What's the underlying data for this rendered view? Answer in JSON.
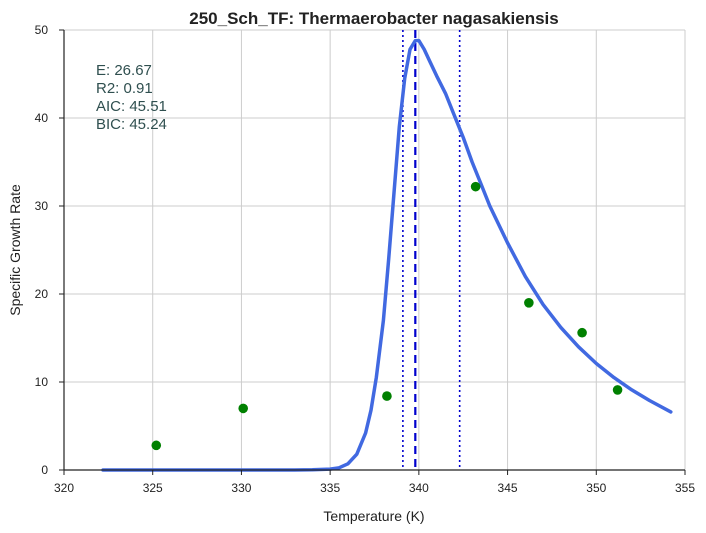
{
  "chart_data": {
    "type": "line",
    "title": "250_Sch_TF: Thermaerobacter nagasakiensis",
    "xlabel": "Temperature (K)",
    "ylabel": "Specific Growth Rate",
    "xlim": [
      320,
      355
    ],
    "ylim": [
      0,
      50
    ],
    "xticks": [
      "320",
      "325",
      "330",
      "335",
      "340",
      "345",
      "350",
      "355"
    ],
    "yticks": [
      "0",
      "10",
      "20",
      "30",
      "40",
      "50"
    ],
    "grid": true,
    "stats": [
      "E:  26.67",
      "R2:  0.91",
      "AIC: 45.51",
      "BIC: 45.24"
    ],
    "points": [
      {
        "x": 325.2,
        "y": 2.8
      },
      {
        "x": 330.1,
        "y": 7.0
      },
      {
        "x": 338.2,
        "y": 8.4
      },
      {
        "x": 343.2,
        "y": 32.2
      },
      {
        "x": 346.2,
        "y": 19.0
      },
      {
        "x": 349.2,
        "y": 15.6
      },
      {
        "x": 351.2,
        "y": 9.1
      }
    ],
    "fit_curve": {
      "x": [
        322.2,
        326,
        330,
        333,
        334,
        335,
        335.5,
        336,
        336.5,
        337,
        337.3,
        337.6,
        338,
        338.3,
        338.6,
        338.9,
        339.2,
        339.5,
        339.8,
        340,
        340.3,
        340.6,
        341,
        341.5,
        342,
        342.5,
        343,
        343.5,
        344,
        345,
        346,
        347,
        348,
        349,
        350,
        351,
        352,
        353,
        354.2
      ],
      "y": [
        0,
        0,
        0,
        0,
        0.02,
        0.1,
        0.25,
        0.7,
        1.8,
        4.2,
        6.8,
        10.5,
        17,
        24,
        31.5,
        39,
        44.5,
        47.8,
        48.8,
        48.8,
        47.8,
        46.5,
        44.8,
        42.8,
        40.3,
        37.8,
        35,
        32.5,
        30,
        25.8,
        22,
        18.8,
        16.2,
        14,
        12.1,
        10.5,
        9.1,
        7.9,
        6.6
      ]
    },
    "vlines": [
      {
        "x": 339.8,
        "style": "dashed"
      },
      {
        "x": 339.1,
        "style": "dotted"
      },
      {
        "x": 342.3,
        "style": "dotted"
      }
    ],
    "colors": {
      "curve": "#4169e1",
      "points": "#008000",
      "vline": "#0000cd",
      "stats": "#2f4f4f"
    }
  }
}
